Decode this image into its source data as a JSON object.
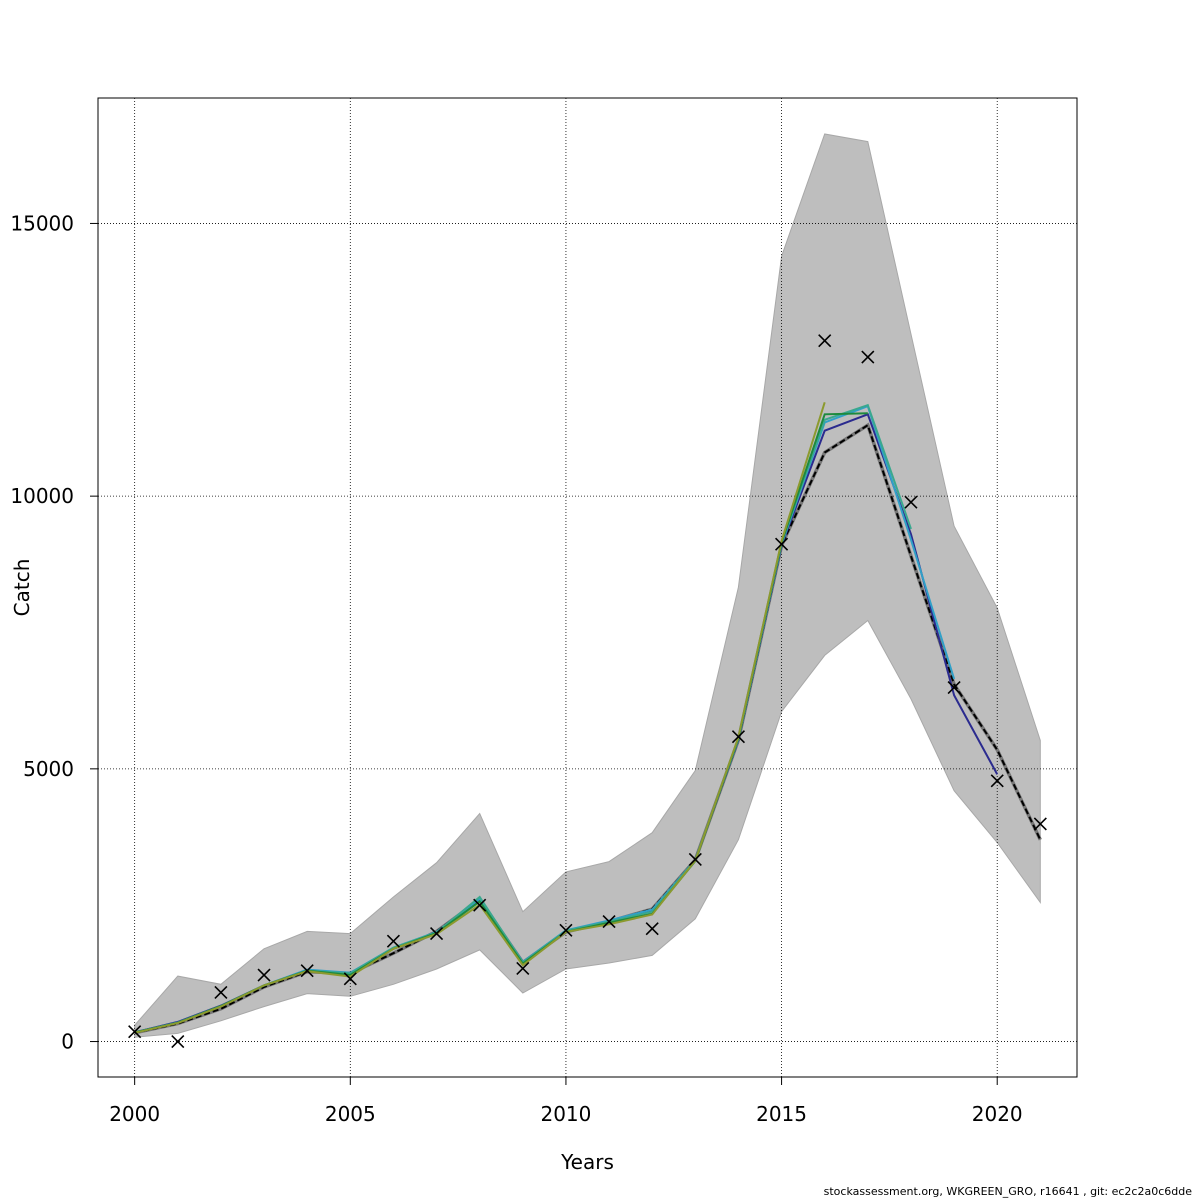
{
  "chart_data": {
    "type": "line",
    "title": "",
    "xlabel": "Years",
    "ylabel": "Catch",
    "xlim": [
      1999.15,
      2021.85
    ],
    "ylim": [
      -650,
      17300
    ],
    "xticks": [
      2000,
      2005,
      2010,
      2015,
      2020
    ],
    "yticks": [
      0,
      5000,
      10000,
      15000
    ],
    "grid": true,
    "band": {
      "color": "#bebebe",
      "x": [
        2000,
        2001,
        2002,
        2003,
        2004,
        2005,
        2006,
        2007,
        2008,
        2009,
        2010,
        2011,
        2012,
        2013,
        2014,
        2015,
        2016,
        2017,
        2018,
        2019,
        2020,
        2021
      ],
      "lower": [
        80,
        150,
        380,
        640,
        880,
        830,
        1050,
        1330,
        1680,
        890,
        1330,
        1440,
        1580,
        2250,
        3700,
        6050,
        7080,
        7720,
        6280,
        4600,
        3650,
        2550
      ],
      "upper": [
        300,
        1200,
        1050,
        1700,
        2020,
        1980,
        2650,
        3280,
        4180,
        2380,
        3110,
        3300,
        3830,
        4970,
        8330,
        14400,
        16640,
        16500,
        12970,
        9450,
        7950,
        5520
      ]
    },
    "series": [
      {
        "color": "#000000",
        "dashed": true,
        "x": [
          2000,
          2001,
          2002,
          2003,
          2004,
          2005,
          2006,
          2007,
          2008,
          2009,
          2010,
          2011,
          2012,
          2013,
          2014,
          2015,
          2016,
          2017,
          2018,
          2019,
          2020,
          2021
        ],
        "values": [
          160,
          330,
          600,
          1000,
          1280,
          1250,
          1620,
          2020,
          2600,
          1450,
          2010,
          2200,
          2430,
          3330,
          5530,
          9100,
          10800,
          11300,
          8900,
          6550,
          5350,
          3700
        ]
      },
      {
        "color": "#2b2b8f",
        "x": [
          2000,
          2001,
          2002,
          2003,
          2004,
          2005,
          2006,
          2007,
          2008,
          2009,
          2010,
          2011,
          2012,
          2013,
          2014,
          2015,
          2016,
          2017,
          2018,
          2019,
          2020
        ],
        "values": [
          170,
          360,
          660,
          1030,
          1310,
          1240,
          1700,
          2010,
          2600,
          1460,
          2030,
          2200,
          2400,
          3330,
          5530,
          9100,
          11200,
          11500,
          9300,
          6350,
          4900
        ]
      },
      {
        "color": "#30a0c8",
        "x": [
          2000,
          2001,
          2002,
          2003,
          2004,
          2005,
          2006,
          2007,
          2008,
          2009,
          2010,
          2011,
          2012,
          2013,
          2014,
          2015,
          2016,
          2017,
          2018,
          2019
        ],
        "values": [
          165,
          350,
          650,
          1030,
          1320,
          1260,
          1720,
          2010,
          2620,
          1460,
          2040,
          2220,
          2420,
          3330,
          5540,
          9120,
          11350,
          11650,
          9200,
          6650
        ]
      },
      {
        "color": "#3aa88e",
        "x": [
          2000,
          2001,
          2002,
          2003,
          2004,
          2005,
          2006,
          2007,
          2008,
          2009,
          2010,
          2011,
          2012,
          2013,
          2014,
          2015,
          2016,
          2017,
          2018
        ],
        "values": [
          165,
          345,
          650,
          1030,
          1300,
          1250,
          1720,
          2000,
          2650,
          1450,
          2030,
          2200,
          2380,
          3330,
          5560,
          9150,
          11400,
          11670,
          9400
        ]
      },
      {
        "color": "#1e8a3c",
        "x": [
          2000,
          2001,
          2002,
          2003,
          2004,
          2005,
          2006,
          2007,
          2008,
          2009,
          2010,
          2011,
          2012,
          2013,
          2014,
          2015,
          2016,
          2017
        ],
        "values": [
          165,
          345,
          650,
          1030,
          1300,
          1220,
          1700,
          1990,
          2570,
          1430,
          2010,
          2180,
          2340,
          3310,
          5560,
          9150,
          11500,
          11520
        ]
      },
      {
        "color": "#8c9a2e",
        "x": [
          2000,
          2001,
          2002,
          2003,
          2004,
          2005,
          2006,
          2007,
          2008,
          2009,
          2010,
          2011,
          2012,
          2013,
          2014,
          2015,
          2016
        ],
        "values": [
          160,
          340,
          640,
          1030,
          1290,
          1190,
          1700,
          1970,
          2510,
          1400,
          2010,
          2150,
          2330,
          3320,
          5580,
          9180,
          11720
        ]
      }
    ],
    "observations": {
      "marker": "x",
      "color": "#000000",
      "x": [
        2000,
        2001,
        2002,
        2003,
        2004,
        2005,
        2006,
        2007,
        2008,
        2009,
        2010,
        2011,
        2012,
        2013,
        2014,
        2015,
        2016,
        2017,
        2018,
        2019,
        2020,
        2021
      ],
      "values": [
        180,
        0,
        900,
        1220,
        1300,
        1150,
        1840,
        1980,
        2500,
        1340,
        2040,
        2200,
        2070,
        3340,
        5590,
        9120,
        12850,
        12550,
        9890,
        6490,
        4780,
        3990
      ]
    }
  },
  "footer": "stockassessment.org, WKGREEN_GRO, r16641 , git: ec2c2a0c6dde"
}
